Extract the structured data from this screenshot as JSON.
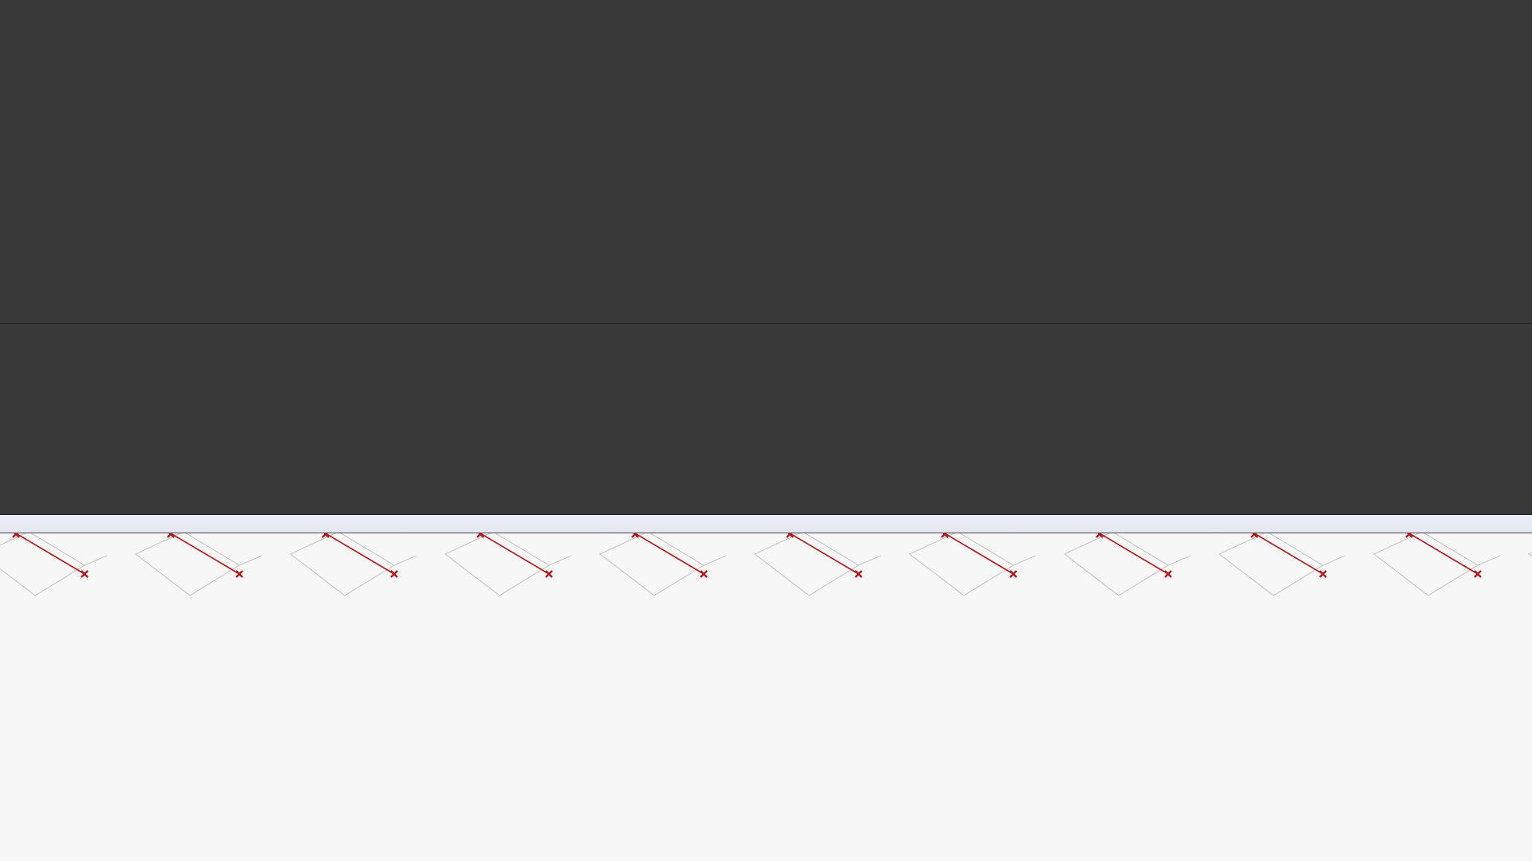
{
  "window": {
    "upper_panel_icon": "none",
    "lower_panel_icon": "none"
  },
  "viewport": {
    "pattern_icon": "repeating-diamond-path",
    "marker_icon": "cross-marker-icon",
    "path_color": "#b01a1a",
    "guide_color": "#c8c8c8",
    "ruler_color": "#e6e9f4"
  }
}
